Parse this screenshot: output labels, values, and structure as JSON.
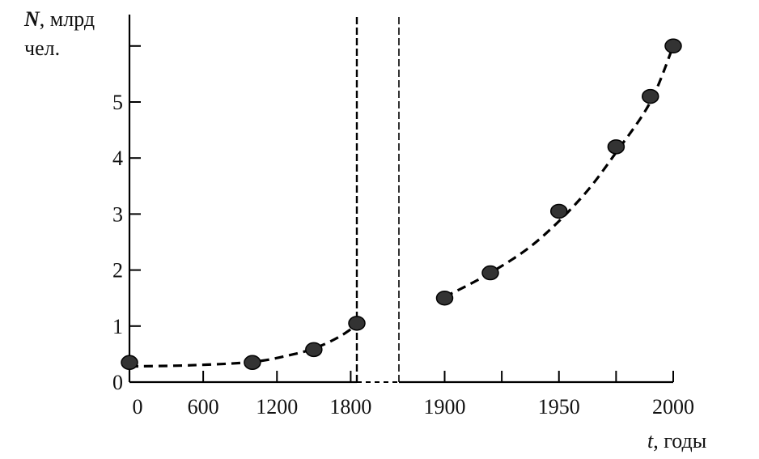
{
  "chart_data": {
    "type": "scatter",
    "title": "",
    "ylabel_symbol": "N",
    "ylabel_unit_line1": ", млрд",
    "ylabel_unit_line2": "чел.",
    "xlabel_symbol": "t",
    "xlabel_unit": ", годы",
    "ylim": [
      0,
      6
    ],
    "yticks": [
      "0",
      "1",
      "2",
      "3",
      "4",
      "5"
    ],
    "x_break_after": 1850,
    "x_break_before": 1880,
    "xticks_left": [
      {
        "value": 0,
        "label": "0"
      },
      {
        "value": 600,
        "label": "600"
      },
      {
        "value": 1200,
        "label": "1200"
      },
      {
        "value": 1800,
        "label": "1800"
      }
    ],
    "xticks_right": [
      {
        "value": 1900,
        "label": "1900"
      },
      {
        "value": 1925,
        "label": ""
      },
      {
        "value": 1950,
        "label": "1950"
      },
      {
        "value": 1975,
        "label": ""
      },
      {
        "value": 2000,
        "label": "2000"
      }
    ],
    "points": [
      {
        "x": 0,
        "y": 0.35
      },
      {
        "x": 1000,
        "y": 0.35
      },
      {
        "x": 1500,
        "y": 0.58
      },
      {
        "x": 1850,
        "y": 1.05
      },
      {
        "x": 1900,
        "y": 1.5
      },
      {
        "x": 1920,
        "y": 1.95
      },
      {
        "x": 1950,
        "y": 3.05
      },
      {
        "x": 1975,
        "y": 4.2
      },
      {
        "x": 1990,
        "y": 5.1
      },
      {
        "x": 2000,
        "y": 6.0
      }
    ],
    "trend": [
      {
        "x": 0,
        "y": 0.28
      },
      {
        "x": 500,
        "y": 0.3
      },
      {
        "x": 1000,
        "y": 0.36
      },
      {
        "x": 1300,
        "y": 0.48
      },
      {
        "x": 1500,
        "y": 0.6
      },
      {
        "x": 1700,
        "y": 0.8
      },
      {
        "x": 1850,
        "y": 1.02
      },
      {
        "x": 1880,
        "y": null
      },
      {
        "x": 1900,
        "y": 1.52
      },
      {
        "x": 1920,
        "y": 1.95
      },
      {
        "x": 1940,
        "y": 2.5
      },
      {
        "x": 1960,
        "y": 3.3
      },
      {
        "x": 1975,
        "y": 4.1
      },
      {
        "x": 1990,
        "y": 5.0
      },
      {
        "x": 2000,
        "y": 6.0
      }
    ]
  }
}
